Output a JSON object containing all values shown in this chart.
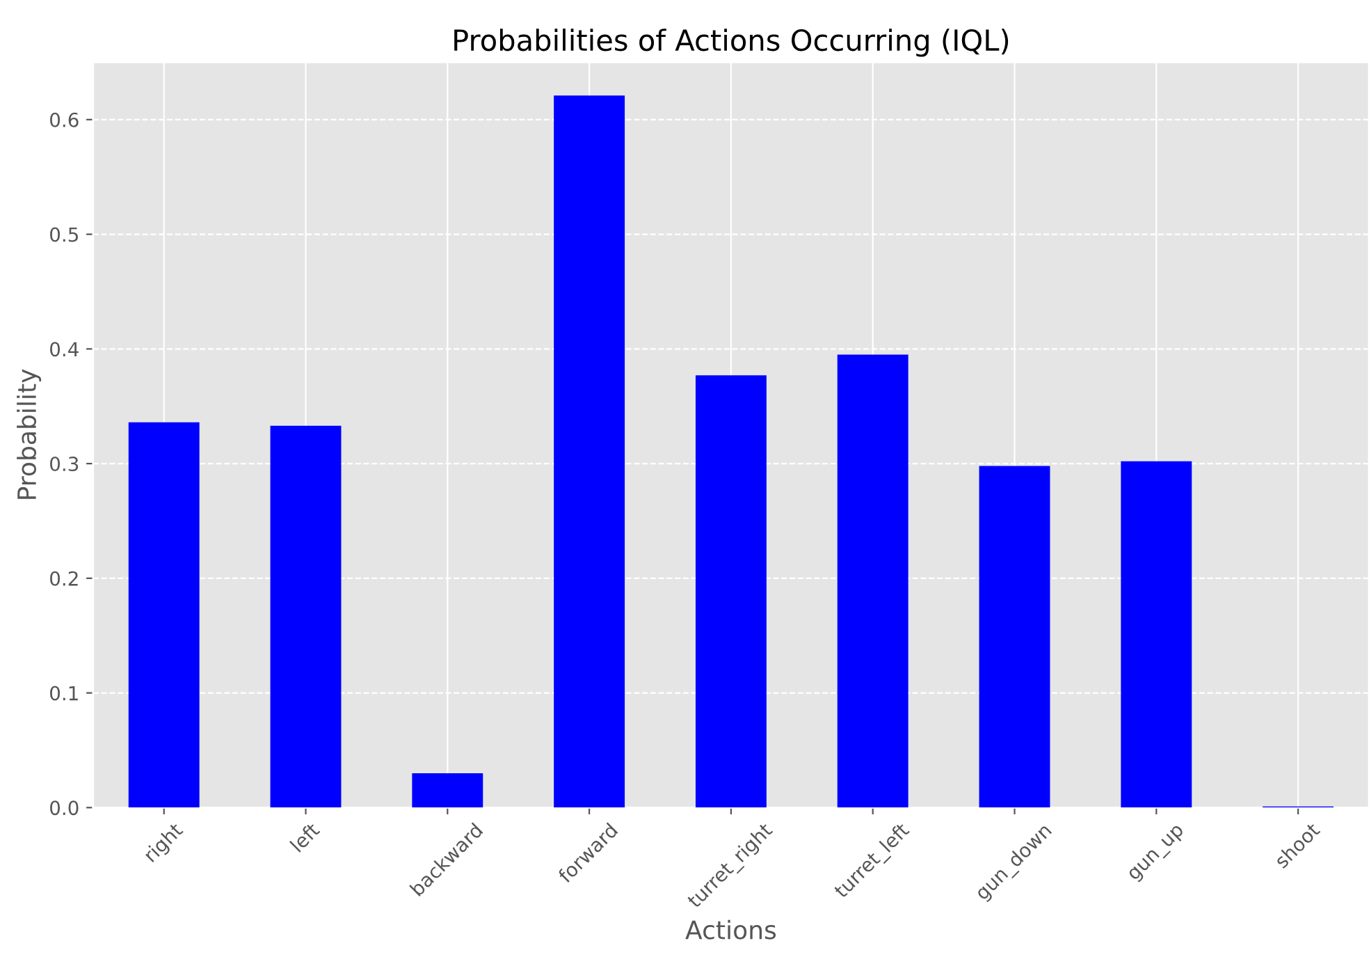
{
  "chart_data": {
    "type": "bar",
    "title": "Probabilities of Actions Occurring (IQL)",
    "xlabel": "Actions",
    "ylabel": "Probability",
    "categories": [
      "right",
      "left",
      "backward",
      "forward",
      "turret_right",
      "turret_left",
      "gun_down",
      "gun_up",
      "shoot"
    ],
    "values": [
      0.336,
      0.333,
      0.03,
      0.621,
      0.377,
      0.395,
      0.298,
      0.302,
      0.001
    ],
    "color": "#0000ff",
    "ylim": [
      0,
      0.65
    ],
    "yticks": [
      {
        "value": 0,
        "label": "0.0"
      },
      0.1,
      0.2,
      0.3,
      0.4,
      0.5,
      0.6
    ],
    "grid": true
  }
}
